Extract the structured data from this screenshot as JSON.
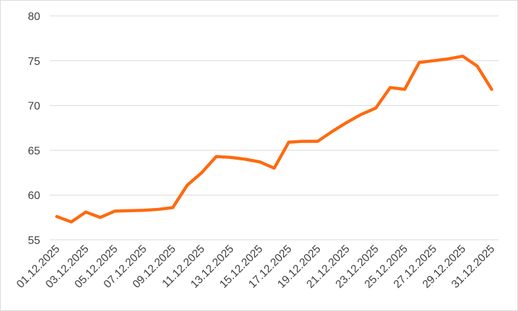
{
  "chart_data": {
    "type": "line",
    "categories": [
      "01.12.2025",
      null,
      "03.12.2025",
      null,
      "05.12.2025",
      null,
      "07.12.2025",
      null,
      "09.12.2025",
      null,
      "11.12.2025",
      null,
      "13.12.2025",
      null,
      "15.12.2025",
      null,
      "17.12.2025",
      null,
      "19.12.2025",
      null,
      "21.12.2025",
      null,
      "23.12.2025",
      null,
      "25.12.2025",
      null,
      "27.12.2025",
      null,
      "29.12.2025",
      null,
      "31.12.2025"
    ],
    "values": [
      57.6,
      57.0,
      58.1,
      57.5,
      58.2,
      58.25,
      58.3,
      58.4,
      58.6,
      61.1,
      62.5,
      64.3,
      64.2,
      64.0,
      63.7,
      63.0,
      65.9,
      66.0,
      66.0,
      67.1,
      68.1,
      69.0,
      69.7,
      72.0,
      71.8,
      74.8,
      75.0,
      75.2,
      75.5,
      74.4,
      71.8
    ],
    "color": "#fe6a10",
    "ylim": [
      55,
      80
    ],
    "yticks": [
      55,
      60,
      65,
      70,
      75,
      80
    ],
    "grid": true
  }
}
